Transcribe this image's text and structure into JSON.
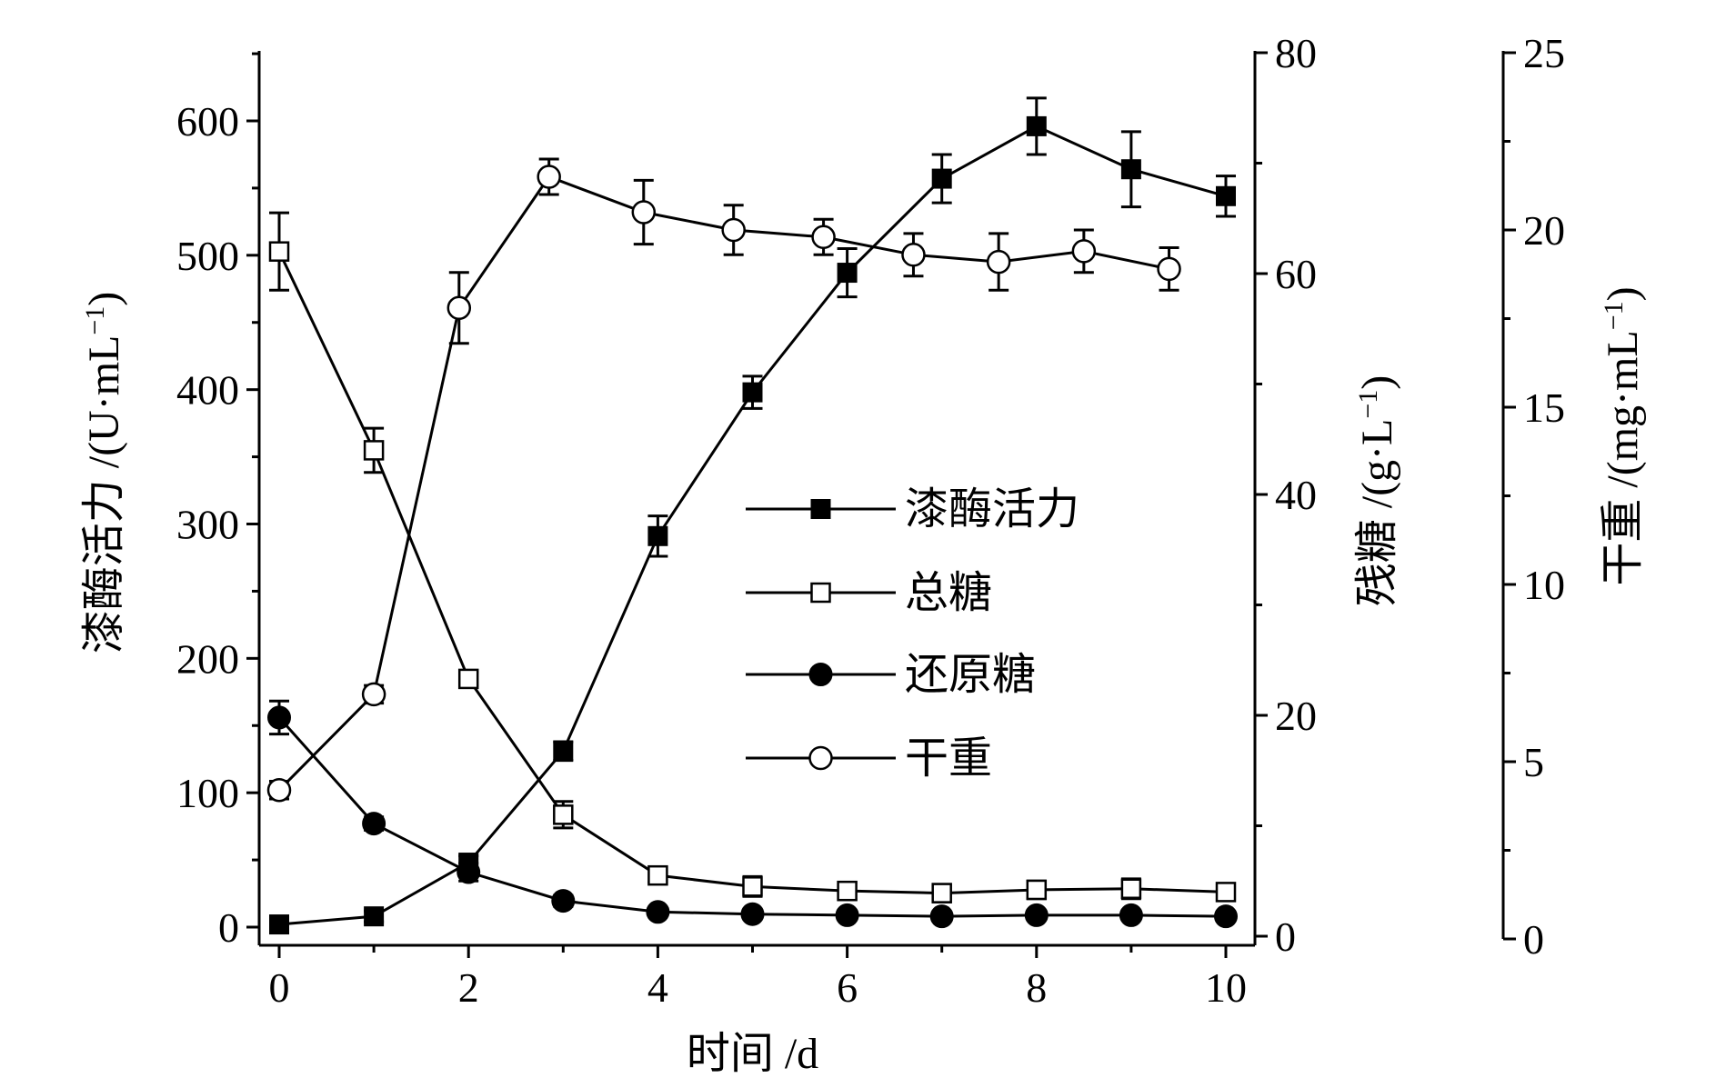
{
  "chart_data": {
    "type": "line",
    "xlabel": "时间 /d",
    "x_ticks": [
      0,
      2,
      4,
      6,
      8,
      10
    ],
    "xlim": [
      -0.2,
      10.2
    ],
    "axes": {
      "left": {
        "label": "漆酶活力 /(U·mL",
        "sup": "−1",
        "close": ")",
        "range": [
          0,
          650
        ],
        "ticks": [
          0,
          100,
          200,
          300,
          400,
          500,
          600
        ],
        "minor": [
          50,
          150,
          250,
          350,
          450,
          550,
          650
        ]
      },
      "right1": {
        "label": "残糖 /(g·L",
        "sup": "−1",
        "close": ")",
        "range": [
          0,
          80
        ],
        "ticks": [
          0,
          20,
          40,
          60,
          80
        ],
        "minor": [
          10,
          30,
          50,
          70
        ]
      },
      "right2": {
        "label": "干重 /(mg·mL",
        "sup": "−1",
        "close": ")",
        "range": [
          0,
          25
        ],
        "ticks": [
          0,
          5,
          10,
          15,
          20,
          25
        ],
        "minor": [
          2.5,
          7.5,
          12.5,
          17.5,
          22.5
        ]
      }
    },
    "series": [
      {
        "name": "漆酶活力",
        "axis": "left",
        "marker": "square-filled",
        "x": [
          0,
          1,
          2,
          3,
          4,
          5,
          6,
          7,
          8,
          9,
          10
        ],
        "y": [
          2,
          8,
          48,
          131,
          291,
          398,
          487,
          557,
          596,
          564,
          544
        ],
        "err": [
          4,
          4,
          5,
          7,
          15,
          12,
          18,
          18,
          21,
          28,
          15
        ]
      },
      {
        "name": "总糖",
        "axis": "right1",
        "marker": "square-open",
        "x": [
          0,
          1,
          2,
          3,
          4,
          5,
          6,
          7,
          8,
          9,
          10
        ],
        "y": [
          62,
          44,
          23.3,
          11,
          5.5,
          4.5,
          4.1,
          3.9,
          4.2,
          4.3,
          4
        ],
        "err": [
          3.5,
          2,
          0.6,
          1.2,
          0.6,
          0.9,
          0.8,
          0.8,
          0.8,
          0.9,
          0.6
        ]
      },
      {
        "name": "还原糖",
        "axis": "right1",
        "marker": "circle-filled",
        "x": [
          0,
          1,
          2,
          3,
          4,
          5,
          6,
          7,
          8,
          9,
          10
        ],
        "y": [
          19.8,
          10.2,
          5.8,
          3.2,
          2.2,
          2,
          1.9,
          1.8,
          1.9,
          1.9,
          1.8
        ],
        "err": [
          1.5,
          0.6,
          0.8,
          0.5,
          0.4,
          0.3,
          0.3,
          0.3,
          0.3,
          0.3,
          0.3
        ]
      },
      {
        "name": "干重",
        "axis": "right2",
        "marker": "circle-open",
        "x": [
          0,
          1,
          1.9,
          2.85,
          3.85,
          4.8,
          5.75,
          6.7,
          7.6,
          8.5,
          9.4
        ],
        "y": [
          4.2,
          6.9,
          17.8,
          21.5,
          20.5,
          20,
          19.8,
          19.3,
          19.1,
          19.4,
          18.9
        ],
        "err": [
          0.25,
          0.25,
          1,
          0.5,
          0.9,
          0.7,
          0.5,
          0.6,
          0.8,
          0.6,
          0.6
        ]
      }
    ],
    "legend_position": "center-right"
  }
}
